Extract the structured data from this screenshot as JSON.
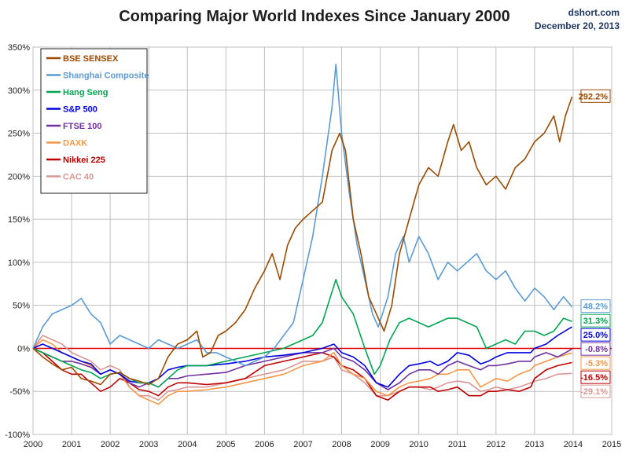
{
  "header": {
    "title": "Comparing Major World Indexes Since January 2000",
    "source": "dshort.com",
    "date": "December 20, 2013"
  },
  "chart_data": {
    "type": "line",
    "title": "Comparing Major World Indexes Since January 2000",
    "xlabel": "",
    "ylabel": "",
    "xlim": [
      2000,
      2015
    ],
    "ylim": [
      -100,
      350
    ],
    "x_ticks": [
      "2000",
      "2001",
      "2002",
      "2003",
      "2004",
      "2005",
      "2006",
      "2007",
      "2008",
      "2009",
      "2010",
      "2011",
      "2012",
      "2013",
      "2014",
      "2015"
    ],
    "y_ticks": [
      -100,
      -50,
      0,
      50,
      100,
      150,
      200,
      250,
      300,
      350
    ],
    "y_tick_labels": [
      "-100%",
      "-50%",
      "0%",
      "50%",
      "100%",
      "150%",
      "200%",
      "250%",
      "300%",
      "350%"
    ],
    "grid": true,
    "zero_line_color": "#e00000",
    "legend_position": "top-left",
    "series": [
      {
        "name": "BSE SENSEX",
        "color": "#9c4a00",
        "end_label": "292.2%",
        "x": [
          2000,
          2000.25,
          2000.5,
          2000.75,
          2001,
          2001.25,
          2001.5,
          2001.75,
          2002,
          2002.25,
          2002.5,
          2002.75,
          2003,
          2003.25,
          2003.5,
          2003.75,
          2004,
          2004.25,
          2004.4,
          2004.6,
          2004.8,
          2005,
          2005.25,
          2005.5,
          2005.75,
          2006,
          2006.2,
          2006.4,
          2006.6,
          2006.8,
          2007,
          2007.25,
          2007.5,
          2007.75,
          2007.95,
          2008.1,
          2008.3,
          2008.5,
          2008.7,
          2008.9,
          2009.1,
          2009.3,
          2009.5,
          2009.75,
          2010,
          2010.25,
          2010.5,
          2010.75,
          2010.9,
          2011.1,
          2011.3,
          2011.5,
          2011.75,
          2012,
          2012.25,
          2012.5,
          2012.75,
          2013,
          2013.25,
          2013.5,
          2013.65,
          2013.8,
          2013.97
        ],
        "y": [
          0,
          -10,
          -18,
          -25,
          -22,
          -35,
          -38,
          -42,
          -30,
          -28,
          -35,
          -38,
          -42,
          -35,
          -10,
          5,
          10,
          20,
          -10,
          -5,
          15,
          20,
          30,
          45,
          70,
          90,
          110,
          80,
          120,
          140,
          150,
          160,
          170,
          230,
          250,
          230,
          150,
          110,
          60,
          40,
          20,
          50,
          110,
          150,
          190,
          210,
          200,
          240,
          260,
          230,
          240,
          210,
          190,
          200,
          185,
          210,
          220,
          240,
          250,
          270,
          240,
          270,
          292.2
        ]
      },
      {
        "name": "Shanghai Composite",
        "color": "#5b9bd5",
        "end_label": "48.2%",
        "x": [
          2000,
          2000.25,
          2000.5,
          2000.75,
          2001,
          2001.25,
          2001.5,
          2001.75,
          2002,
          2002.25,
          2002.5,
          2002.75,
          2003,
          2003.25,
          2003.5,
          2003.75,
          2004,
          2004.25,
          2004.5,
          2004.75,
          2005,
          2005.25,
          2005.5,
          2005.75,
          2006,
          2006.25,
          2006.5,
          2006.75,
          2007,
          2007.25,
          2007.5,
          2007.75,
          2007.85,
          2008,
          2008.2,
          2008.4,
          2008.6,
          2008.8,
          2008.95,
          2009.2,
          2009.4,
          2009.6,
          2009.75,
          2010,
          2010.25,
          2010.5,
          2010.75,
          2011,
          2011.25,
          2011.5,
          2011.75,
          2012,
          2012.25,
          2012.5,
          2012.75,
          2013,
          2013.25,
          2013.5,
          2013.75,
          2013.97
        ],
        "y": [
          0,
          25,
          40,
          45,
          50,
          58,
          40,
          30,
          5,
          15,
          10,
          5,
          0,
          10,
          5,
          0,
          5,
          10,
          -5,
          -5,
          -10,
          -15,
          -20,
          -15,
          -10,
          0,
          15,
          30,
          80,
          130,
          200,
          280,
          330,
          250,
          180,
          120,
          80,
          40,
          25,
          60,
          110,
          130,
          100,
          130,
          110,
          80,
          100,
          90,
          100,
          110,
          90,
          80,
          90,
          70,
          55,
          70,
          60,
          45,
          60,
          48.2
        ]
      },
      {
        "name": "Hang Seng",
        "color": "#00a650",
        "end_label": "31.3%",
        "x": [
          2000,
          2000.25,
          2000.5,
          2000.75,
          2001,
          2001.25,
          2001.5,
          2001.75,
          2002,
          2002.25,
          2002.5,
          2002.75,
          2003,
          2003.25,
          2003.5,
          2003.75,
          2004,
          2004.5,
          2005,
          2005.5,
          2006,
          2006.5,
          2007,
          2007.25,
          2007.5,
          2007.85,
          2008,
          2008.3,
          2008.6,
          2008.85,
          2009,
          2009.25,
          2009.5,
          2009.75,
          2010,
          2010.25,
          2010.5,
          2010.75,
          2011,
          2011.25,
          2011.5,
          2011.75,
          2012,
          2012.25,
          2012.5,
          2012.75,
          2013,
          2013.25,
          2013.5,
          2013.75,
          2013.97
        ],
        "y": [
          0,
          -5,
          -10,
          -15,
          -20,
          -25,
          -28,
          -35,
          -30,
          -28,
          -35,
          -40,
          -40,
          -45,
          -35,
          -25,
          -20,
          -20,
          -15,
          -10,
          -5,
          0,
          10,
          15,
          30,
          80,
          60,
          40,
          0,
          -30,
          -20,
          10,
          30,
          35,
          30,
          25,
          30,
          35,
          35,
          30,
          25,
          0,
          5,
          10,
          5,
          20,
          20,
          15,
          20,
          35,
          31.3
        ]
      },
      {
        "name": "S&P 500",
        "color": "#0000e0",
        "end_label": "25.0%",
        "x": [
          2000,
          2000.25,
          2000.5,
          2000.75,
          2001,
          2001.25,
          2001.5,
          2001.75,
          2002,
          2002.25,
          2002.5,
          2002.75,
          2003,
          2003.25,
          2003.5,
          2003.75,
          2004,
          2004.5,
          2005,
          2005.5,
          2006,
          2006.5,
          2007,
          2007.5,
          2007.8,
          2008,
          2008.3,
          2008.6,
          2008.9,
          2009.2,
          2009.5,
          2009.75,
          2010,
          2010.3,
          2010.5,
          2010.75,
          2011,
          2011.3,
          2011.6,
          2011.8,
          2012,
          2012.3,
          2012.6,
          2012.9,
          2013,
          2013.3,
          2013.6,
          2013.97
        ],
        "y": [
          0,
          5,
          0,
          -5,
          -10,
          -15,
          -18,
          -30,
          -25,
          -30,
          -38,
          -40,
          -40,
          -35,
          -25,
          -22,
          -20,
          -20,
          -18,
          -15,
          -10,
          -8,
          -5,
          0,
          5,
          -5,
          -10,
          -20,
          -40,
          -45,
          -30,
          -20,
          -18,
          -15,
          -20,
          -15,
          -5,
          -8,
          -18,
          -15,
          -10,
          -5,
          -5,
          -5,
          0,
          5,
          15,
          25.0
        ]
      },
      {
        "name": "FTSE 100",
        "color": "#7030a0",
        "end_label": "-0.8%",
        "x": [
          2000,
          2000.25,
          2000.5,
          2000.75,
          2001,
          2001.25,
          2001.5,
          2001.75,
          2002,
          2002.25,
          2002.5,
          2002.75,
          2003,
          2003.25,
          2003.5,
          2003.75,
          2004,
          2004.5,
          2005,
          2005.5,
          2006,
          2006.5,
          2007,
          2007.5,
          2007.8,
          2008,
          2008.3,
          2008.6,
          2008.9,
          2009.2,
          2009.5,
          2009.75,
          2010,
          2010.3,
          2010.5,
          2010.75,
          2011,
          2011.3,
          2011.6,
          2011.8,
          2012,
          2012.3,
          2012.6,
          2012.9,
          2013,
          2013.3,
          2013.6,
          2013.97
        ],
        "y": [
          0,
          -5,
          -10,
          -15,
          -15,
          -18,
          -22,
          -30,
          -25,
          -30,
          -40,
          -45,
          -40,
          -45,
          -35,
          -35,
          -32,
          -30,
          -28,
          -20,
          -15,
          -10,
          -5,
          -5,
          0,
          -10,
          -15,
          -25,
          -40,
          -48,
          -40,
          -30,
          -25,
          -25,
          -30,
          -20,
          -15,
          -20,
          -25,
          -20,
          -20,
          -18,
          -15,
          -15,
          -10,
          -5,
          -10,
          -0.8
        ]
      },
      {
        "name": "DAXK",
        "color": "#f79646",
        "end_label": "-5.3%",
        "x": [
          2000,
          2000.25,
          2000.5,
          2000.75,
          2001,
          2001.25,
          2001.5,
          2001.75,
          2002,
          2002.25,
          2002.5,
          2002.75,
          2003,
          2003.25,
          2003.5,
          2003.75,
          2004,
          2004.5,
          2005,
          2005.5,
          2006,
          2006.5,
          2007,
          2007.5,
          2007.8,
          2008,
          2008.3,
          2008.6,
          2008.9,
          2009.2,
          2009.5,
          2009.75,
          2010,
          2010.3,
          2010.5,
          2010.75,
          2011,
          2011.3,
          2011.6,
          2011.8,
          2012,
          2012.3,
          2012.6,
          2012.9,
          2013,
          2013.3,
          2013.6,
          2013.97
        ],
        "y": [
          0,
          10,
          5,
          -5,
          -10,
          -15,
          -20,
          -30,
          -25,
          -30,
          -45,
          -55,
          -60,
          -65,
          -55,
          -50,
          -50,
          -48,
          -45,
          -40,
          -35,
          -30,
          -20,
          -15,
          -5,
          -20,
          -30,
          -35,
          -50,
          -55,
          -45,
          -40,
          -38,
          -35,
          -30,
          -30,
          -25,
          -25,
          -45,
          -40,
          -35,
          -38,
          -30,
          -25,
          -20,
          -15,
          -10,
          -5.3
        ]
      },
      {
        "name": "Nikkei 225",
        "color": "#c00000",
        "end_label": "-16.5%",
        "x": [
          2000,
          2000.25,
          2000.5,
          2000.75,
          2001,
          2001.25,
          2001.5,
          2001.75,
          2002,
          2002.25,
          2002.5,
          2002.75,
          2003,
          2003.25,
          2003.5,
          2003.75,
          2004,
          2004.5,
          2005,
          2005.5,
          2006,
          2006.5,
          2007,
          2007.5,
          2007.8,
          2008,
          2008.3,
          2008.6,
          2008.9,
          2009.2,
          2009.5,
          2009.75,
          2010,
          2010.3,
          2010.5,
          2010.75,
          2011,
          2011.3,
          2011.6,
          2011.8,
          2012,
          2012.3,
          2012.6,
          2012.9,
          2013,
          2013.3,
          2013.6,
          2013.97
        ],
        "y": [
          0,
          -5,
          -15,
          -25,
          -30,
          -30,
          -40,
          -50,
          -45,
          -35,
          -40,
          -48,
          -50,
          -55,
          -45,
          -40,
          -40,
          -42,
          -40,
          -35,
          -20,
          -15,
          -10,
          -5,
          -10,
          -20,
          -25,
          -35,
          -55,
          -60,
          -50,
          -45,
          -45,
          -45,
          -50,
          -48,
          -45,
          -55,
          -55,
          -50,
          -50,
          -48,
          -50,
          -45,
          -35,
          -25,
          -20,
          -16.5
        ]
      },
      {
        "name": "CAC 40",
        "color": "#d99694",
        "end_label": "-29.1%",
        "x": [
          2000,
          2000.25,
          2000.5,
          2000.75,
          2001,
          2001.25,
          2001.5,
          2001.75,
          2002,
          2002.25,
          2002.5,
          2002.75,
          2003,
          2003.25,
          2003.5,
          2003.75,
          2004,
          2004.5,
          2005,
          2005.5,
          2006,
          2006.5,
          2007,
          2007.5,
          2007.8,
          2008,
          2008.3,
          2008.6,
          2008.9,
          2009.2,
          2009.5,
          2009.75,
          2010,
          2010.3,
          2010.5,
          2010.75,
          2011,
          2011.3,
          2011.6,
          2011.8,
          2012,
          2012.3,
          2012.6,
          2012.9,
          2013,
          2013.3,
          2013.6,
          2013.97
        ],
        "y": [
          0,
          15,
          10,
          5,
          -5,
          -10,
          -15,
          -25,
          -20,
          -25,
          -45,
          -55,
          -55,
          -60,
          -50,
          -48,
          -45,
          -45,
          -40,
          -35,
          -30,
          -25,
          -15,
          -15,
          -10,
          -25,
          -30,
          -40,
          -55,
          -55,
          -50,
          -45,
          -45,
          -48,
          -45,
          -40,
          -38,
          -40,
          -50,
          -48,
          -45,
          -48,
          -45,
          -40,
          -38,
          -35,
          -30,
          -29.1
        ]
      }
    ]
  }
}
